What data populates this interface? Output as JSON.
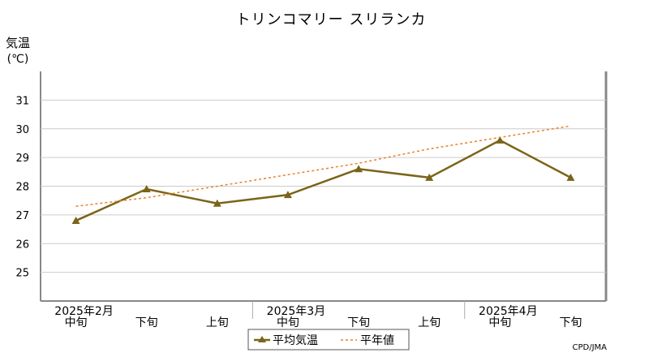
{
  "chart_data": {
    "type": "line",
    "title": "トリンコマリー スリランカ",
    "ylabel_line1": "気温",
    "ylabel_line2": "(℃)",
    "ylim": [
      24,
      32
    ],
    "yticks": [
      25,
      26,
      27,
      28,
      29,
      30,
      31
    ],
    "categories": [
      "中旬",
      "下旬",
      "上旬",
      "中旬",
      "下旬",
      "上旬",
      "中旬",
      "下旬"
    ],
    "month_labels": [
      {
        "label": "2025年2月",
        "at_index": 0
      },
      {
        "label": "2025年3月",
        "at_index": 3
      },
      {
        "label": "2025年4月",
        "at_index": 6
      }
    ],
    "series": [
      {
        "name": "平均気温",
        "color": "#7a6418",
        "marker": "triangle",
        "values": [
          26.8,
          27.9,
          27.4,
          27.7,
          28.6,
          28.3,
          29.6,
          28.3
        ]
      },
      {
        "name": "平年値",
        "color": "#e8822a",
        "dashed": true,
        "values": [
          27.3,
          27.6,
          28.0,
          28.4,
          28.8,
          29.3,
          29.7,
          30.1
        ]
      }
    ],
    "grid": true,
    "legend_position": "bottom-center",
    "credit": "CPD/JMA"
  }
}
